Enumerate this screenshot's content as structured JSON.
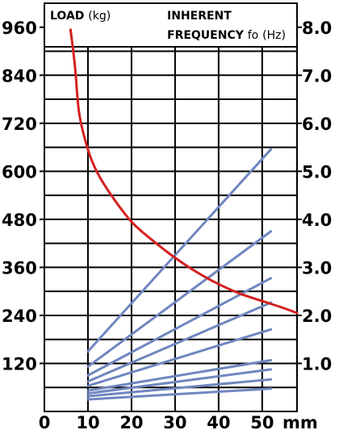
{
  "chart_data": {
    "type": "line",
    "header": {
      "load_label": "LOAD",
      "load_unit": "(kg)",
      "freq_line1": "INHERENT",
      "freq_line2": "FREQUENCY",
      "freq_symbol": "fo",
      "freq_unit": "(Hz)"
    },
    "x_axis": {
      "unit_label": "mm",
      "range": [
        0,
        58
      ],
      "ticks": [
        0,
        10,
        20,
        30,
        40,
        50
      ],
      "tick_labels": [
        "0",
        "10",
        "20",
        "30",
        "40",
        "50"
      ]
    },
    "y_left": {
      "range": [
        0,
        1020
      ],
      "ticks": [
        120,
        240,
        360,
        480,
        600,
        720,
        840,
        960
      ],
      "tick_labels": [
        "120",
        "240",
        "360",
        "480",
        "600",
        "720",
        "840",
        "960"
      ]
    },
    "y_right": {
      "range": [
        0,
        8.5
      ],
      "ticks": [
        1.0,
        2.0,
        3.0,
        4.0,
        5.0,
        6.0,
        7.0,
        8.0
      ],
      "tick_labels": [
        "1.0",
        "2.0",
        "3.0",
        "4.0",
        "5.0",
        "6.0",
        "7.0",
        "8.0"
      ]
    },
    "grid": true,
    "frequency_curve": {
      "axis": "right",
      "color": "#d42020",
      "points": [
        [
          6,
          7.95
        ],
        [
          7,
          7.2
        ],
        [
          8,
          6.2
        ],
        [
          10,
          5.45
        ],
        [
          12,
          5.0
        ],
        [
          15,
          4.55
        ],
        [
          20,
          3.95
        ],
        [
          25,
          3.55
        ],
        [
          30,
          3.2
        ],
        [
          35,
          2.9
        ],
        [
          40,
          2.65
        ],
        [
          45,
          2.45
        ],
        [
          50,
          2.3
        ],
        [
          55,
          2.15
        ],
        [
          58,
          2.05
        ]
      ]
    },
    "load_lines": {
      "axis": "left",
      "color": "#6f86bf",
      "lines": [
        {
          "x": [
            10,
            52
          ],
          "y": [
            150,
            655
          ]
        },
        {
          "x": [
            10,
            52
          ],
          "y": [
            112,
            450
          ]
        },
        {
          "x": [
            10,
            52
          ],
          "y": [
            90,
            333
          ]
        },
        {
          "x": [
            10,
            52
          ],
          "y": [
            75,
            272
          ]
        },
        {
          "x": [
            10,
            52
          ],
          "y": [
            64,
            205
          ]
        },
        {
          "x": [
            10,
            52
          ],
          "y": [
            52,
            128
          ]
        },
        {
          "x": [
            10,
            52
          ],
          "y": [
            45,
            105
          ]
        },
        {
          "x": [
            10,
            52
          ],
          "y": [
            38,
            80
          ]
        },
        {
          "x": [
            10,
            52
          ],
          "y": [
            30,
            57
          ]
        }
      ]
    }
  }
}
